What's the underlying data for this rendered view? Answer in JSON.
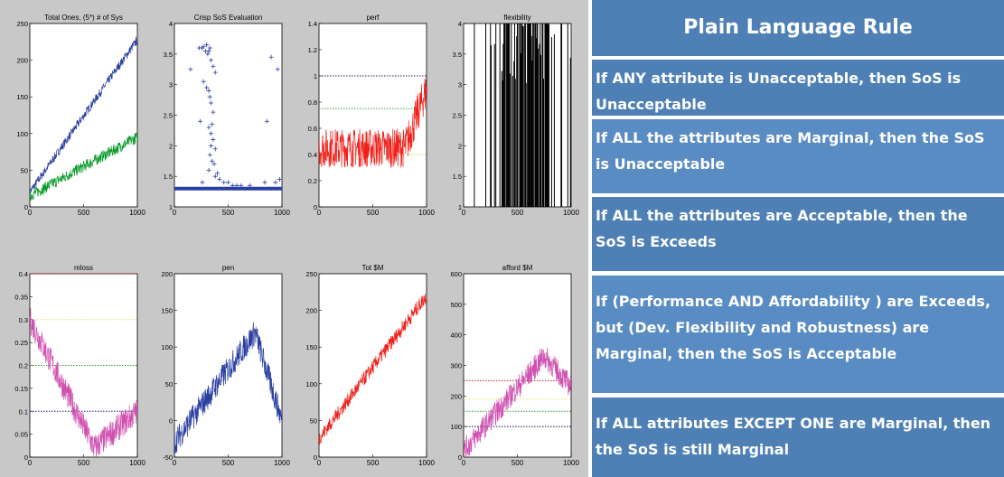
{
  "colors": {
    "blue": "#2a3fa0",
    "green": "#0a9a2a",
    "red": "#f0201a",
    "black": "#000000",
    "magenta": "#d050b0",
    "panel": "#c8c8c8",
    "header": "#4e80b6"
  },
  "rules": {
    "header": "Plain Language Rule",
    "items": [
      {
        "text": "If   ANY   attribute is Unacceptable, then SoS is Unacceptable"
      },
      {
        "text": "If    ALL    the attributes are Marginal, then the SoS is Unacceptable"
      },
      {
        "text": "If    ALL    the attributes are Acceptable, then the SoS is Exceeds"
      },
      {
        "text": "If    (Performance  AND  Affordability )   are Exceeds, but (Dev.  Flexibility and Robustness) are Marginal, then the SoS is Acceptable"
      },
      {
        "text": "If   ALL   attributes EXCEPT ONE are Marginal, then the SoS is still Marginal"
      }
    ]
  },
  "chart_data": [
    {
      "type": "line",
      "title": "Total Ones, (5*) # of Sys",
      "xlim": [
        0,
        1000
      ],
      "ylim": [
        0,
        250
      ],
      "xticks": [
        "0",
        "500",
        "1000"
      ],
      "yticks": [
        "0",
        "50",
        "100",
        "150",
        "200",
        "250"
      ],
      "series": [
        {
          "color": "blue",
          "start": 20,
          "end": 228,
          "noise": 6
        },
        {
          "color": "green",
          "start": 15,
          "end": 95,
          "noise": 8
        }
      ],
      "refs": []
    },
    {
      "type": "scatter",
      "title": "Crisp SoS Evaluation",
      "xlim": [
        0,
        1000
      ],
      "ylim": [
        1,
        4
      ],
      "xticks": [
        "0",
        "500",
        "1000"
      ],
      "yticks": [
        "1",
        "1.5",
        "2",
        "2.5",
        "3",
        "3.5",
        "4"
      ],
      "baseline": 1.3,
      "points": [
        [
          150,
          3.25
        ],
        [
          230,
          3.6
        ],
        [
          255,
          3.6
        ],
        [
          270,
          3.62
        ],
        [
          290,
          3.55
        ],
        [
          300,
          3.65
        ],
        [
          310,
          3.5
        ],
        [
          320,
          3.55
        ],
        [
          330,
          3.6
        ],
        [
          340,
          3.4
        ],
        [
          360,
          3.3
        ],
        [
          380,
          3.2
        ],
        [
          270,
          3.05
        ],
        [
          300,
          2.95
        ],
        [
          320,
          2.9
        ],
        [
          330,
          2.8
        ],
        [
          340,
          2.7
        ],
        [
          360,
          2.55
        ],
        [
          350,
          2.35
        ],
        [
          320,
          2.3
        ],
        [
          340,
          2.2
        ],
        [
          360,
          2.1
        ],
        [
          340,
          2.0
        ],
        [
          380,
          1.95
        ],
        [
          330,
          1.85
        ],
        [
          350,
          1.75
        ],
        [
          370,
          1.7
        ],
        [
          320,
          1.6
        ],
        [
          400,
          1.55
        ],
        [
          380,
          1.5
        ],
        [
          420,
          1.45
        ],
        [
          240,
          2.4
        ],
        [
          260,
          1.4
        ],
        [
          460,
          1.4
        ],
        [
          500,
          1.4
        ],
        [
          540,
          1.35
        ],
        [
          580,
          1.35
        ],
        [
          620,
          1.35
        ],
        [
          840,
          1.4
        ],
        [
          860,
          2.4
        ],
        [
          900,
          3.45
        ],
        [
          960,
          3.25
        ],
        [
          940,
          1.4
        ],
        [
          980,
          1.45
        ],
        [
          700,
          1.35
        ]
      ],
      "series": [],
      "refs": []
    },
    {
      "type": "line",
      "title": "perf",
      "xlim": [
        0,
        1000
      ],
      "ylim": [
        0,
        1.4
      ],
      "xticks": [
        "0",
        "500",
        "1000"
      ],
      "yticks": [
        "0",
        "0.2",
        "0.4",
        "0.6",
        "0.8",
        "1",
        "1.2",
        "1.4"
      ],
      "series": [
        {
          "color": "red",
          "start": 0.45,
          "end": 0.9,
          "noise": 0.15,
          "bend": 0.5
        }
      ],
      "refs": [
        {
          "y": 1.0,
          "color": "#1a1a60"
        },
        {
          "y": 0.75,
          "color": "#40b040"
        },
        {
          "y": 0.4,
          "color": "#d8d060"
        }
      ]
    },
    {
      "type": "binary",
      "title": "flexibility",
      "xlim": [
        0,
        1000
      ],
      "ylim": [
        1,
        4
      ],
      "xticks": [
        "0",
        "500",
        "1000"
      ],
      "yticks": [
        "1",
        "1.5",
        "2",
        "2.5",
        "3",
        "3.5",
        "4"
      ],
      "series": [],
      "refs": []
    },
    {
      "type": "line",
      "title": "mloss",
      "xlim": [
        0,
        1000
      ],
      "ylim": [
        0,
        0.4
      ],
      "xticks": [
        "0",
        "500",
        "1000"
      ],
      "yticks": [
        "0",
        "0.05",
        "0.1",
        "0.15",
        "0.2",
        "0.25",
        "0.3",
        "0.35",
        "0.4"
      ],
      "series": [
        {
          "color": "magenta",
          "shape": "valley",
          "start": 0.3,
          "mid": 0.02,
          "end": 0.1,
          "noise": 0.03
        }
      ],
      "refs": [
        {
          "y": 0.4,
          "color": "#c02020"
        },
        {
          "y": 0.3,
          "color": "#e8e070"
        },
        {
          "y": 0.2,
          "color": "#30a030"
        },
        {
          "y": 0.1,
          "color": "#2020a0"
        }
      ]
    },
    {
      "type": "line",
      "title": "pen",
      "xlim": [
        0,
        1000
      ],
      "ylim": [
        -50,
        200
      ],
      "xticks": [
        "0",
        "500",
        "1000"
      ],
      "yticks": [
        "-50",
        "0",
        "50",
        "100",
        "150",
        "200"
      ],
      "series": [
        {
          "color": "blue",
          "shape": "hump",
          "start": -30,
          "mid": 120,
          "end": 0,
          "noise": 18
        }
      ],
      "refs": []
    },
    {
      "type": "line",
      "title": "Tot $M",
      "xlim": [
        0,
        1000
      ],
      "ylim": [
        0,
        250
      ],
      "xticks": [
        "0",
        "500",
        "1000"
      ],
      "yticks": [
        "0",
        "50",
        "100",
        "150",
        "200",
        "250"
      ],
      "series": [
        {
          "color": "red",
          "start": 25,
          "end": 220,
          "noise": 10
        }
      ],
      "refs": []
    },
    {
      "type": "line",
      "title": "afford $M",
      "xlim": [
        0,
        1000
      ],
      "ylim": [
        0,
        600
      ],
      "xticks": [
        "0",
        "500",
        "1000"
      ],
      "yticks": [
        "0",
        "100",
        "200",
        "300",
        "400",
        "500",
        "600"
      ],
      "series": [
        {
          "color": "magenta",
          "shape": "hump",
          "start": 20,
          "mid": 330,
          "end": 230,
          "noise": 40
        }
      ],
      "refs": [
        {
          "y": 250,
          "color": "#c02020"
        },
        {
          "y": 190,
          "color": "#e8e070"
        },
        {
          "y": 150,
          "color": "#30a030"
        },
        {
          "y": 100,
          "color": "#101050"
        }
      ]
    }
  ]
}
